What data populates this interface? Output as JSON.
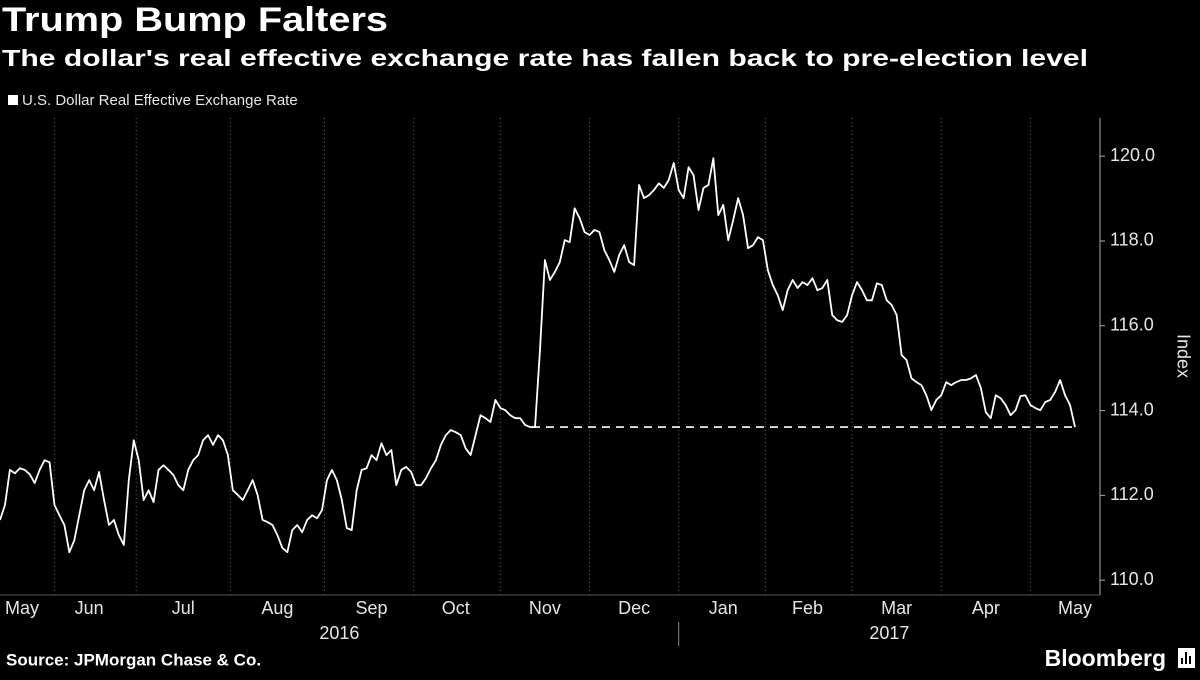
{
  "chart_data": {
    "type": "line",
    "title": "Trump Bump Falters",
    "subtitle": "The dollar's real effective exchange rate has fallen back to pre-election level",
    "y_label": "Index",
    "source": "Source: JPMorgan Chase & Co.",
    "brand": "Bloomberg",
    "categories": [
      null,
      null,
      null,
      null,
      "May",
      null,
      null,
      null,
      null,
      null,
      null,
      null,
      null,
      null,
      null,
      null,
      null,
      null,
      "Jun",
      null,
      null,
      null,
      null,
      null,
      null,
      null,
      null,
      null,
      null,
      null,
      null,
      null,
      null,
      null,
      null,
      null,
      null,
      "Jul",
      null,
      null,
      null,
      null,
      null,
      null,
      null,
      null,
      null,
      null,
      null,
      null,
      null,
      null,
      null,
      null,
      null,
      null,
      "Aug",
      null,
      null,
      null,
      null,
      null,
      null,
      null,
      null,
      null,
      null,
      null,
      null,
      null,
      null,
      null,
      null,
      null,
      null,
      "Sep",
      null,
      null,
      null,
      null,
      null,
      null,
      null,
      null,
      null,
      null,
      null,
      null,
      null,
      null,
      null,
      null,
      "Oct",
      null,
      null,
      null,
      null,
      null,
      null,
      null,
      null,
      null,
      null,
      null,
      null,
      null,
      null,
      null,
      null,
      null,
      "Nov",
      null,
      null,
      null,
      null,
      null,
      null,
      null,
      null,
      null,
      null,
      null,
      null,
      null,
      null,
      null,
      null,
      null,
      "Dec",
      null,
      null,
      null,
      null,
      null,
      null,
      null,
      null,
      null,
      null,
      null,
      null,
      null,
      null,
      null,
      null,
      null,
      "Jan",
      null,
      null,
      null,
      null,
      null,
      null,
      null,
      null,
      null,
      null,
      null,
      null,
      null,
      null,
      null,
      null,
      "Feb",
      null,
      null,
      null,
      null,
      null,
      null,
      null,
      null,
      null,
      null,
      null,
      null,
      null,
      null,
      null,
      null,
      null,
      "Mar",
      null,
      null,
      null,
      null,
      null,
      null,
      null,
      null,
      null,
      null,
      null,
      null,
      null,
      null,
      null,
      null,
      null,
      "Apr",
      null,
      null,
      null,
      null,
      null,
      null,
      null,
      null,
      null,
      null,
      null,
      null,
      null,
      null,
      null,
      null,
      null,
      "May"
    ],
    "x_groups": [
      {
        "label": "2016",
        "span": 146
      },
      {
        "label": "2017",
        "span": 72
      }
    ],
    "series": [
      {
        "name": "U.S. Dollar Real Effective Exchange Rate",
        "color": "#ffffff",
        "values": [
          111.42,
          111.77,
          112.6,
          112.52,
          112.64,
          112.6,
          112.5,
          112.29,
          112.6,
          112.83,
          112.78,
          111.77,
          111.53,
          111.3,
          110.66,
          110.94,
          111.53,
          112.12,
          112.36,
          112.12,
          112.55,
          111.89,
          111.3,
          111.42,
          111.06,
          110.83,
          112.36,
          113.3,
          112.83,
          111.89,
          112.12,
          111.84,
          112.6,
          112.71,
          112.6,
          112.48,
          112.24,
          112.12,
          112.6,
          112.83,
          112.95,
          113.3,
          113.42,
          113.19,
          113.42,
          113.3,
          112.95,
          112.12,
          112.01,
          111.89,
          112.12,
          112.36,
          112.01,
          111.42,
          111.37,
          111.3,
          111.06,
          110.76,
          110.66,
          111.18,
          111.3,
          111.13,
          111.42,
          111.53,
          111.46,
          111.65,
          112.36,
          112.6,
          112.36,
          111.89,
          111.23,
          111.18,
          112.12,
          112.6,
          112.64,
          112.95,
          112.83,
          113.23,
          112.95,
          113.07,
          112.24,
          112.6,
          112.67,
          112.55,
          112.24,
          112.24,
          112.41,
          112.64,
          112.83,
          113.19,
          113.42,
          113.54,
          113.49,
          113.42,
          113.11,
          112.95,
          113.42,
          113.89,
          113.82,
          113.73,
          114.25,
          114.06,
          114.01,
          113.89,
          113.82,
          113.82,
          113.66,
          113.61,
          113.61,
          115.43,
          117.55,
          117.08,
          117.27,
          117.5,
          118.02,
          117.97,
          118.77,
          118.54,
          118.21,
          118.14,
          118.26,
          118.21,
          117.78,
          117.55,
          117.27,
          117.67,
          117.9,
          117.5,
          117.43,
          119.32,
          119.01,
          119.08,
          119.2,
          119.36,
          119.25,
          119.44,
          119.84,
          119.2,
          119.01,
          119.74,
          119.55,
          118.73,
          119.25,
          119.32,
          119.95,
          118.61,
          118.85,
          118.02,
          118.49,
          119.01,
          118.61,
          117.83,
          117.9,
          118.09,
          118.02,
          117.31,
          116.96,
          116.72,
          116.37,
          116.84,
          117.08,
          116.89,
          117.03,
          116.96,
          117.12,
          116.84,
          116.89,
          117.08,
          116.25,
          116.13,
          116.09,
          116.25,
          116.72,
          117.03,
          116.84,
          116.6,
          116.6,
          117.0,
          116.96,
          116.6,
          116.49,
          116.25,
          115.31,
          115.19,
          114.76,
          114.67,
          114.6,
          114.36,
          114.01,
          114.25,
          114.36,
          114.67,
          114.6,
          114.67,
          114.72,
          114.72,
          114.76,
          114.84,
          114.53,
          113.96,
          113.82,
          114.36,
          114.29,
          114.13,
          113.89,
          114.01,
          114.34,
          114.36,
          114.13,
          114.06,
          114.01,
          114.2,
          114.25,
          114.44,
          114.72,
          114.36,
          114.13,
          113.61
        ]
      }
    ],
    "reference_level": 113.61,
    "ylim": [
      109.65,
      120.9
    ],
    "yticks": [
      {
        "value": 110,
        "label": "110.0"
      },
      {
        "value": 112,
        "label": "112.0"
      },
      {
        "value": 114,
        "label": "114.0"
      },
      {
        "value": 116,
        "label": "116.0"
      },
      {
        "value": 118,
        "label": "118.0"
      },
      {
        "value": 120,
        "label": "120.0"
      }
    ],
    "grid": true
  }
}
